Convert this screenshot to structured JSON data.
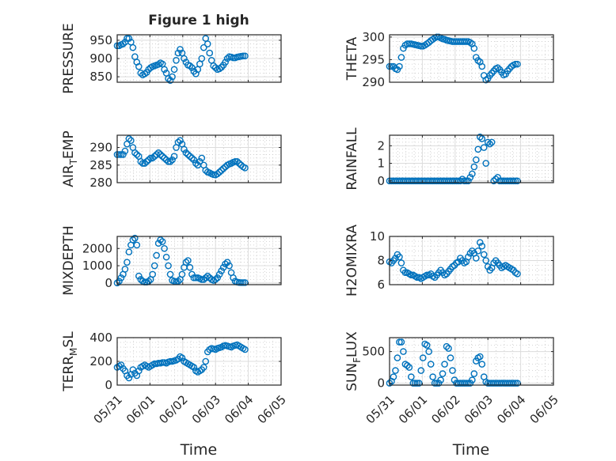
{
  "title": "Figure 1 high",
  "x_axis": {
    "label": "Time",
    "tick_labels": [
      "05/31",
      "06/01",
      "06/02",
      "06/03",
      "06/04",
      "06/05"
    ]
  },
  "colors": {
    "marker": "#0072bd",
    "axis": "#262626",
    "grid": "#dcdcdc"
  },
  "chart_data": [
    {
      "type": "scatter",
      "ylabel": "PRESSURE",
      "ylim": [
        835,
        965
      ],
      "yticks": [
        850,
        900,
        950
      ],
      "x": [
        0,
        0.06,
        0.12,
        0.18,
        0.24,
        0.3,
        0.36,
        0.42,
        0.48,
        0.54,
        0.6,
        0.66,
        0.72,
        0.78,
        0.84,
        0.9,
        0.96,
        1.02,
        1.08,
        1.14,
        1.2,
        1.26,
        1.32,
        1.38,
        1.44,
        1.5,
        1.56,
        1.62,
        1.68,
        1.74,
        1.8,
        1.86,
        1.92,
        1.98,
        2.04,
        2.1,
        2.16,
        2.22,
        2.28,
        2.34,
        2.4,
        2.46,
        2.52,
        2.58,
        2.64,
        2.7,
        2.76,
        2.82,
        2.88,
        2.94,
        3,
        3.06,
        3.12,
        3.18,
        3.24,
        3.3,
        3.36,
        3.42,
        3.48,
        3.54,
        3.6,
        3.66,
        3.72,
        3.78,
        3.84,
        3.9
      ],
      "y": [
        935,
        935,
        938,
        940,
        945,
        955,
        955,
        945,
        930,
        905,
        890,
        878,
        860,
        855,
        858,
        862,
        870,
        875,
        878,
        880,
        882,
        884,
        888,
        885,
        870,
        860,
        845,
        840,
        850,
        870,
        895,
        915,
        925,
        915,
        900,
        890,
        882,
        880,
        875,
        865,
        858,
        870,
        885,
        900,
        930,
        955,
        940,
        915,
        895,
        880,
        875,
        870,
        872,
        876,
        882,
        890,
        900,
        905,
        904,
        902,
        902,
        904,
        905,
        906,
        907,
        907
      ]
    },
    {
      "type": "scatter",
      "ylabel": "THETA",
      "ylim": [
        290,
        300.5
      ],
      "yticks": [
        290,
        295,
        300
      ],
      "x": [
        0,
        0.06,
        0.12,
        0.18,
        0.24,
        0.3,
        0.36,
        0.42,
        0.48,
        0.54,
        0.6,
        0.66,
        0.72,
        0.78,
        0.84,
        0.9,
        0.96,
        1.02,
        1.08,
        1.14,
        1.2,
        1.26,
        1.32,
        1.38,
        1.44,
        1.5,
        1.56,
        1.62,
        1.68,
        1.74,
        1.8,
        1.86,
        1.92,
        1.98,
        2.04,
        2.1,
        2.16,
        2.22,
        2.28,
        2.34,
        2.4,
        2.46,
        2.52,
        2.58,
        2.64,
        2.7,
        2.76,
        2.82,
        2.88,
        2.94,
        3,
        3.06,
        3.12,
        3.18,
        3.24,
        3.3,
        3.36,
        3.42,
        3.48,
        3.54,
        3.6,
        3.66,
        3.72,
        3.78,
        3.84,
        3.9
      ],
      "y": [
        293.5,
        293.5,
        293.5,
        293,
        292.8,
        293.5,
        295.5,
        297.5,
        298.2,
        298.5,
        298.5,
        298.5,
        298.4,
        298.3,
        298.2,
        298.1,
        298,
        298,
        298.2,
        298.5,
        298.8,
        299.2,
        299.5,
        299.8,
        300,
        300,
        299.8,
        299.6,
        299.5,
        299.3,
        299.2,
        299.1,
        299,
        299,
        299,
        299,
        299,
        299,
        299,
        299,
        299,
        298.8,
        298.5,
        297.5,
        295.5,
        294.8,
        294.5,
        293.5,
        291.5,
        290.5,
        290.8,
        291.5,
        292,
        292.5,
        293,
        293.2,
        292.8,
        292.2,
        291.6,
        291.8,
        292.5,
        293,
        293.5,
        293.8,
        294,
        294
      ]
    },
    {
      "type": "scatter",
      "ylabel": "AIR_TEMP",
      "ylim": [
        280,
        293.5
      ],
      "yticks": [
        280,
        285,
        290
      ],
      "x": [
        0,
        0.06,
        0.12,
        0.18,
        0.24,
        0.3,
        0.36,
        0.42,
        0.48,
        0.54,
        0.6,
        0.66,
        0.72,
        0.78,
        0.84,
        0.9,
        0.96,
        1.02,
        1.08,
        1.14,
        1.2,
        1.26,
        1.32,
        1.38,
        1.44,
        1.5,
        1.56,
        1.62,
        1.68,
        1.74,
        1.8,
        1.86,
        1.92,
        1.98,
        2.04,
        2.1,
        2.16,
        2.22,
        2.28,
        2.34,
        2.4,
        2.46,
        2.52,
        2.58,
        2.64,
        2.7,
        2.76,
        2.82,
        2.88,
        2.94,
        3,
        3.06,
        3.12,
        3.18,
        3.24,
        3.3,
        3.36,
        3.42,
        3.48,
        3.54,
        3.6,
        3.66,
        3.72,
        3.78,
        3.84,
        3.9
      ],
      "y": [
        288,
        288,
        288,
        288,
        289,
        291,
        292.5,
        292,
        290,
        288.5,
        288,
        287.5,
        286,
        285.5,
        285.5,
        286,
        286.5,
        287,
        287,
        287.5,
        288,
        288.5,
        288,
        287.5,
        287,
        286.5,
        286,
        286,
        286.5,
        287.5,
        290,
        291.5,
        292,
        291,
        289.5,
        288.5,
        288,
        287.5,
        287,
        286.5,
        285.5,
        285,
        286,
        287,
        285,
        283.5,
        283,
        282.8,
        282.5,
        282.3,
        282.2,
        282.5,
        283,
        283.5,
        284,
        284.5,
        285,
        285.3,
        285.5,
        285.8,
        286,
        286,
        285.5,
        285,
        284.5,
        284.2
      ]
    },
    {
      "type": "scatter",
      "ylabel": "RAINFALL",
      "ylim": [
        -0.1,
        2.6
      ],
      "yticks": [
        0,
        1,
        2
      ],
      "x": [
        0,
        0.06,
        0.12,
        0.18,
        0.24,
        0.3,
        0.36,
        0.42,
        0.48,
        0.54,
        0.6,
        0.66,
        0.72,
        0.78,
        0.84,
        0.9,
        0.96,
        1.02,
        1.08,
        1.14,
        1.2,
        1.26,
        1.32,
        1.38,
        1.44,
        1.5,
        1.56,
        1.62,
        1.68,
        1.74,
        1.8,
        1.86,
        1.92,
        1.98,
        2.04,
        2.1,
        2.16,
        2.22,
        2.28,
        2.34,
        2.4,
        2.46,
        2.52,
        2.58,
        2.64,
        2.7,
        2.76,
        2.82,
        2.88,
        2.94,
        3,
        3.06,
        3.12,
        3.18,
        3.24,
        3.3,
        3.36,
        3.42,
        3.48,
        3.54,
        3.6,
        3.66,
        3.72,
        3.78,
        3.84,
        3.9
      ],
      "y": [
        0,
        0,
        0,
        0,
        0,
        0,
        0,
        0,
        0,
        0,
        0,
        0,
        0,
        0,
        0,
        0,
        0,
        0,
        0,
        0,
        0,
        0,
        0,
        0,
        0,
        0,
        0,
        0,
        0,
        0,
        0,
        0,
        0,
        0,
        0,
        0,
        0,
        0.1,
        0,
        0,
        0,
        0.2,
        0.4,
        0.8,
        1.2,
        1.8,
        2.5,
        2.4,
        1.9,
        1.0,
        2.2,
        2.1,
        2.2,
        0,
        0.1,
        0.2,
        0,
        0,
        0,
        0,
        0,
        0,
        0,
        0,
        0,
        0
      ]
    },
    {
      "type": "scatter",
      "ylabel": "MIXDEPTH",
      "ylim": [
        -100,
        2700
      ],
      "yticks": [
        0,
        1000,
        2000
      ],
      "x": [
        0,
        0.06,
        0.12,
        0.18,
        0.24,
        0.3,
        0.36,
        0.42,
        0.48,
        0.54,
        0.6,
        0.66,
        0.72,
        0.78,
        0.84,
        0.9,
        0.96,
        1.02,
        1.08,
        1.14,
        1.2,
        1.26,
        1.32,
        1.38,
        1.44,
        1.5,
        1.56,
        1.62,
        1.68,
        1.74,
        1.8,
        1.86,
        1.92,
        1.98,
        2.04,
        2.1,
        2.16,
        2.22,
        2.28,
        2.34,
        2.4,
        2.46,
        2.52,
        2.58,
        2.64,
        2.7,
        2.76,
        2.82,
        2.88,
        2.94,
        3,
        3.06,
        3.12,
        3.18,
        3.24,
        3.3,
        3.36,
        3.42,
        3.48,
        3.54,
        3.6,
        3.66,
        3.72,
        3.78,
        3.84,
        3.9
      ],
      "y": [
        0,
        100,
        300,
        500,
        800,
        1200,
        1800,
        2200,
        2500,
        2600,
        2200,
        400,
        200,
        100,
        50,
        50,
        100,
        200,
        500,
        1000,
        1600,
        2300,
        2500,
        2400,
        2000,
        1500,
        1000,
        500,
        150,
        100,
        80,
        100,
        200,
        500,
        900,
        1200,
        1300,
        900,
        500,
        300,
        300,
        300,
        250,
        200,
        200,
        300,
        400,
        300,
        200,
        150,
        200,
        300,
        500,
        700,
        900,
        1100,
        1200,
        1000,
        600,
        300,
        100,
        50,
        30,
        20,
        20,
        20
      ]
    },
    {
      "type": "scatter",
      "ylabel": "H2OMIXRA",
      "ylim": [
        6,
        10
      ],
      "yticks": [
        6,
        8,
        10
      ],
      "x": [
        0,
        0.06,
        0.12,
        0.18,
        0.24,
        0.3,
        0.36,
        0.42,
        0.48,
        0.54,
        0.6,
        0.66,
        0.72,
        0.78,
        0.84,
        0.9,
        0.96,
        1.02,
        1.08,
        1.14,
        1.2,
        1.26,
        1.32,
        1.38,
        1.44,
        1.5,
        1.56,
        1.62,
        1.68,
        1.74,
        1.8,
        1.86,
        1.92,
        1.98,
        2.04,
        2.1,
        2.16,
        2.22,
        2.28,
        2.34,
        2.4,
        2.46,
        2.52,
        2.58,
        2.64,
        2.7,
        2.76,
        2.82,
        2.88,
        2.94,
        3,
        3.06,
        3.12,
        3.18,
        3.24,
        3.3,
        3.36,
        3.42,
        3.48,
        3.54,
        3.6,
        3.66,
        3.72,
        3.78,
        3.84,
        3.9
      ],
      "y": [
        7.9,
        7.8,
        8.0,
        8.2,
        8.5,
        8.3,
        7.8,
        7.2,
        7.0,
        7.0,
        6.9,
        6.8,
        6.8,
        6.7,
        6.6,
        6.6,
        6.5,
        6.6,
        6.7,
        6.8,
        6.8,
        6.9,
        6.7,
        6.6,
        6.8,
        7.0,
        7.2,
        7.0,
        6.8,
        6.9,
        7.1,
        7.3,
        7.5,
        7.6,
        7.8,
        7.9,
        8.2,
        8.0,
        7.8,
        7.9,
        8.3,
        8.6,
        8.8,
        8.6,
        8.2,
        8.8,
        9.5,
        9.2,
        8.5,
        8.0,
        7.5,
        7.2,
        7.4,
        7.8,
        8.0,
        7.8,
        7.6,
        7.4,
        7.5,
        7.6,
        7.5,
        7.4,
        7.3,
        7.2,
        7.0,
        6.9
      ]
    },
    {
      "type": "scatter",
      "ylabel": "TERR_MSL",
      "ylim": [
        0,
        400
      ],
      "yticks": [
        0,
        200,
        400
      ],
      "x": [
        0,
        0.06,
        0.12,
        0.18,
        0.24,
        0.3,
        0.36,
        0.42,
        0.48,
        0.54,
        0.6,
        0.66,
        0.72,
        0.78,
        0.84,
        0.9,
        0.96,
        1.02,
        1.08,
        1.14,
        1.2,
        1.26,
        1.32,
        1.38,
        1.44,
        1.5,
        1.56,
        1.62,
        1.68,
        1.74,
        1.8,
        1.86,
        1.92,
        1.98,
        2.04,
        2.1,
        2.16,
        2.22,
        2.28,
        2.34,
        2.4,
        2.46,
        2.52,
        2.58,
        2.64,
        2.7,
        2.76,
        2.82,
        2.88,
        2.94,
        3,
        3.06,
        3.12,
        3.18,
        3.24,
        3.3,
        3.36,
        3.42,
        3.48,
        3.54,
        3.6,
        3.66,
        3.72,
        3.78,
        3.84,
        3.9
      ],
      "y": [
        150,
        160,
        170,
        140,
        120,
        80,
        60,
        90,
        130,
        100,
        80,
        120,
        150,
        160,
        170,
        160,
        150,
        160,
        170,
        180,
        180,
        185,
        185,
        190,
        190,
        185,
        195,
        200,
        200,
        205,
        210,
        220,
        240,
        230,
        200,
        190,
        180,
        170,
        160,
        150,
        120,
        110,
        120,
        130,
        150,
        200,
        280,
        300,
        310,
        305,
        300,
        310,
        315,
        320,
        330,
        335,
        330,
        325,
        320,
        330,
        335,
        340,
        330,
        320,
        310,
        300
      ]
    },
    {
      "type": "scatter",
      "ylabel": "SUN_FLUX",
      "ylim": [
        -30,
        720
      ],
      "yticks": [
        0,
        500
      ],
      "x": [
        0,
        0.06,
        0.12,
        0.18,
        0.24,
        0.3,
        0.36,
        0.42,
        0.48,
        0.54,
        0.6,
        0.66,
        0.72,
        0.78,
        0.84,
        0.9,
        0.96,
        1.02,
        1.08,
        1.14,
        1.2,
        1.26,
        1.32,
        1.38,
        1.44,
        1.5,
        1.56,
        1.62,
        1.68,
        1.74,
        1.8,
        1.86,
        1.92,
        1.98,
        2.04,
        2.1,
        2.16,
        2.22,
        2.28,
        2.34,
        2.4,
        2.46,
        2.52,
        2.58,
        2.64,
        2.7,
        2.76,
        2.82,
        2.88,
        2.94,
        3,
        3.06,
        3.12,
        3.18,
        3.24,
        3.3,
        3.36,
        3.42,
        3.48,
        3.54,
        3.6,
        3.66,
        3.72,
        3.78,
        3.84,
        3.9
      ],
      "y": [
        0,
        30,
        100,
        200,
        400,
        650,
        650,
        500,
        300,
        280,
        250,
        100,
        0,
        0,
        0,
        0,
        200,
        400,
        620,
        600,
        500,
        300,
        100,
        0,
        0,
        0,
        50,
        150,
        300,
        580,
        550,
        400,
        200,
        50,
        0,
        0,
        0,
        0,
        0,
        0,
        0,
        0,
        50,
        150,
        350,
        400,
        420,
        300,
        100,
        20,
        0,
        0,
        0,
        0,
        0,
        0,
        0,
        0,
        0,
        0,
        0,
        0,
        0,
        0,
        0,
        0
      ]
    }
  ]
}
